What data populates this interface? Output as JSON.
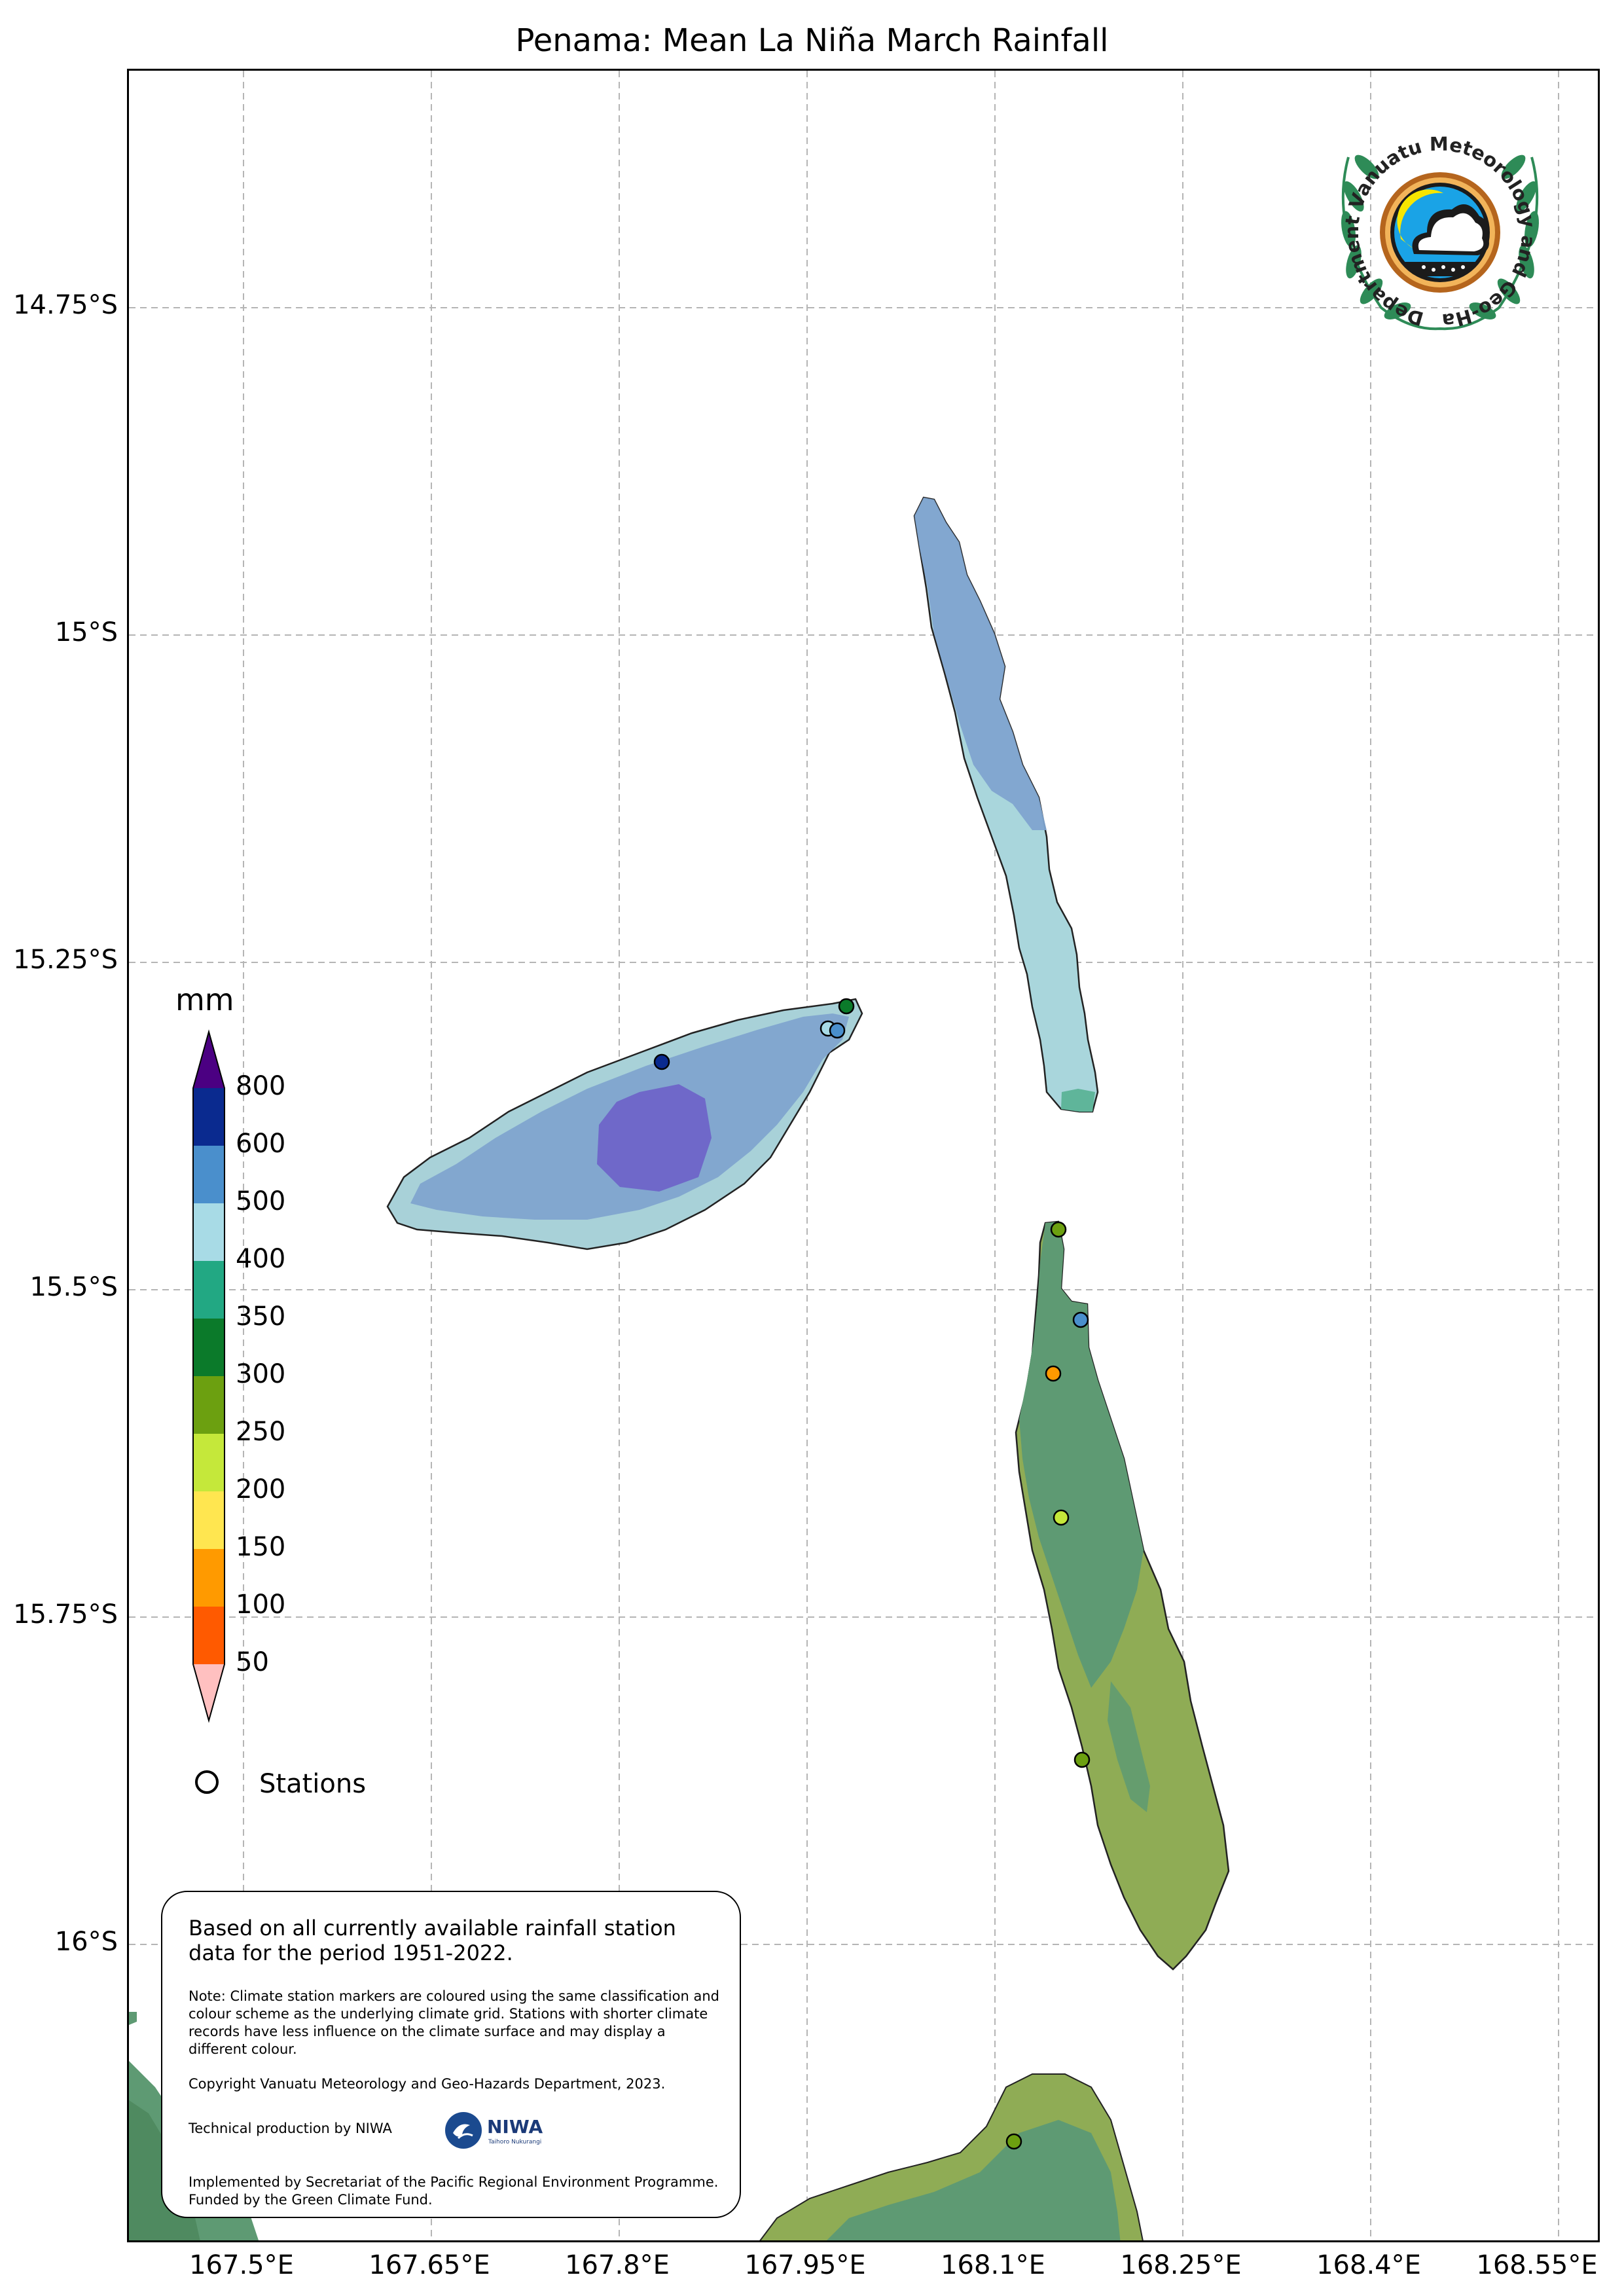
{
  "title": "Penama: Mean La Niña March Rainfall",
  "axes": {
    "lat_ticks": [
      "14.75°S",
      "15°S",
      "15.25°S",
      "15.5°S",
      "15.75°S",
      "16°S"
    ],
    "lon_ticks": [
      "167.5°E",
      "167.65°E",
      "167.8°E",
      "167.95°E",
      "168.1°E",
      "168.25°E",
      "168.4°E",
      "168.55°E"
    ],
    "grid": true
  },
  "legend": {
    "unit": "mm",
    "values": [
      "800",
      "600",
      "500",
      "400",
      "350",
      "300",
      "250",
      "200",
      "150",
      "100",
      "50"
    ],
    "colors": [
      "#4b0082",
      "#0a2a8f",
      "#4a8fcc",
      "#a8dbe6",
      "#22a883",
      "#0b7a2a",
      "#6ca010",
      "#c5e83a",
      "#ffe650",
      "#ff9a00",
      "#ff5a00",
      "#ffc0c0"
    ],
    "stations_label": "Stations"
  },
  "notes": {
    "main": "Based on all currently available rainfall station data for the period 1951-2022.",
    "note": "Note: Climate station markers are coloured using the same classification and colour scheme as the underlying climate grid. Stations with shorter climate records have less influence on the climate surface and may display a different colour.",
    "copyright": "Copyright Vanuatu Meteorology and Geo-Hazards Department, 2023.",
    "production": "Technical production by NIWA",
    "implemented": "Implemented by Secretariat of the Pacific Regional Environment Programme. Funded by the Green Climate Fund."
  },
  "logos": {
    "vmgd_text": "Department Vanuatu Meteorology and Geo-Hazards",
    "niwa_text": "NIWA",
    "niwa_sub": "Taihoro Nukurangi"
  }
}
